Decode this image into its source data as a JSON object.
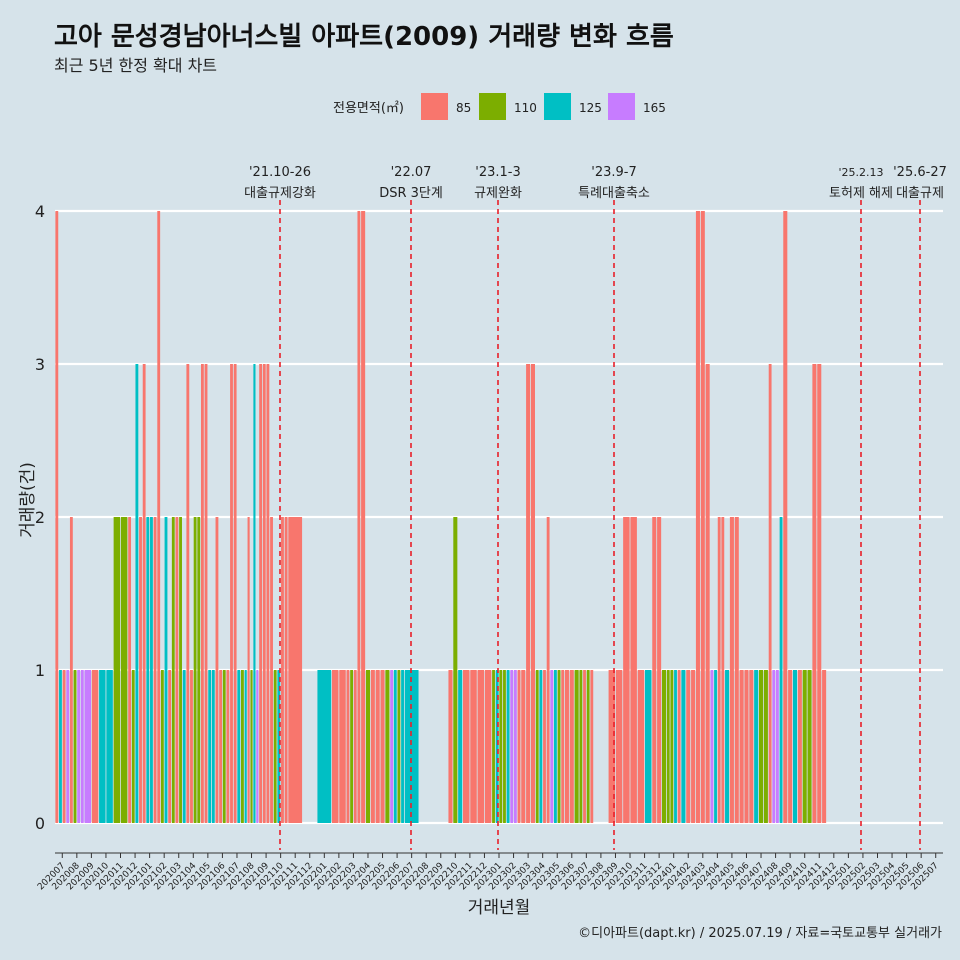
{
  "title": "고아 문성경남아너스빌 아파트(2009) 거래량 변화 흐름",
  "subtitle": "최근 5년 한정 확대 차트",
  "footer": "©디아파트(dapt.kr) / 2025.07.19 / 자료=국토교통부 실거래가",
  "colors": {
    "background": "#d6e3ea",
    "grid": "#ffffff",
    "event_line": "#e8202a"
  },
  "chart_data": {
    "type": "bar",
    "xlabel": "거래년월",
    "ylabel": "거래량(건)",
    "ylim": [
      0,
      4
    ],
    "yticks": [
      0,
      1,
      2,
      3,
      4
    ],
    "legend": {
      "title": "전용면적(㎡)",
      "position": "top",
      "items": [
        {
          "name": "85",
          "color": "#f8766d"
        },
        {
          "name": "110",
          "color": "#7cae00"
        },
        {
          "name": "125",
          "color": "#00bfc4"
        },
        {
          "name": "165",
          "color": "#c77cff"
        }
      ]
    },
    "categories": [
      "202007",
      "202008",
      "202009",
      "202010",
      "202011",
      "202012",
      "202101",
      "202102",
      "202103",
      "202104",
      "202105",
      "202106",
      "202107",
      "202108",
      "202109",
      "202110",
      "202111",
      "202112",
      "202201",
      "202202",
      "202203",
      "202204",
      "202205",
      "202206",
      "202207",
      "202208",
      "202209",
      "202210",
      "202211",
      "202212",
      "202301",
      "202302",
      "202303",
      "202304",
      "202305",
      "202306",
      "202307",
      "202308",
      "202309",
      "202310",
      "202311",
      "202312",
      "202401",
      "202402",
      "202403",
      "202404",
      "202405",
      "202406",
      "202407",
      "202408",
      "202409",
      "202410",
      "202411",
      "202412",
      "202501",
      "202502",
      "202503",
      "202504",
      "202505",
      "202506",
      "202507"
    ],
    "transactions": [
      {
        "month": "202007",
        "bars": [
          [
            "85",
            4
          ],
          [
            "125",
            1
          ],
          [
            "85",
            1
          ],
          [
            "165",
            1
          ]
        ]
      },
      {
        "month": "202008",
        "bars": [
          [
            "85",
            2
          ],
          [
            "110",
            1
          ],
          [
            "165",
            1
          ],
          [
            "165",
            1
          ]
        ]
      },
      {
        "month": "202009",
        "bars": [
          [
            "165",
            1
          ],
          [
            "85",
            1
          ]
        ]
      },
      {
        "month": "202010",
        "bars": [
          [
            "125",
            1
          ],
          [
            "125",
            1
          ]
        ]
      },
      {
        "month": "202011",
        "bars": [
          [
            "110",
            2
          ],
          [
            "110",
            2
          ]
        ]
      },
      {
        "month": "202012",
        "bars": [
          [
            "85",
            2
          ],
          [
            "110",
            1
          ],
          [
            "125",
            3
          ],
          [
            "85",
            2
          ]
        ]
      },
      {
        "month": "202101",
        "bars": [
          [
            "85",
            3
          ],
          [
            "125",
            2
          ],
          [
            "125",
            2
          ],
          [
            "85",
            2
          ]
        ]
      },
      {
        "month": "202102",
        "bars": [
          [
            "85",
            4
          ],
          [
            "110",
            1
          ],
          [
            "125",
            2
          ],
          [
            "85",
            1
          ]
        ]
      },
      {
        "month": "202103",
        "bars": [
          [
            "110",
            2
          ],
          [
            "85",
            2
          ],
          [
            "110",
            2
          ],
          [
            "125",
            1
          ]
        ]
      },
      {
        "month": "202104",
        "bars": [
          [
            "85",
            3
          ],
          [
            "85",
            1
          ],
          [
            "110",
            2
          ],
          [
            "110",
            2
          ]
        ]
      },
      {
        "month": "202105",
        "bars": [
          [
            "85",
            3
          ],
          [
            "85",
            3
          ],
          [
            "125",
            1
          ],
          [
            "125",
            1
          ]
        ]
      },
      {
        "month": "202106",
        "bars": [
          [
            "85",
            2
          ],
          [
            "85",
            1
          ],
          [
            "110",
            1
          ],
          [
            "85",
            1
          ]
        ]
      },
      {
        "month": "202107",
        "bars": [
          [
            "85",
            3
          ],
          [
            "85",
            3
          ],
          [
            "125",
            1
          ],
          [
            "110",
            1
          ]
        ]
      },
      {
        "month": "202108",
        "bars": [
          [
            "125",
            1
          ],
          [
            "85",
            2
          ],
          [
            "110",
            1
          ],
          [
            "125",
            3
          ],
          [
            "165",
            1
          ]
        ]
      },
      {
        "month": "202109",
        "bars": [
          [
            "85",
            3
          ],
          [
            "85",
            3
          ],
          [
            "85",
            3
          ],
          [
            "85",
            2
          ]
        ]
      },
      {
        "month": "202110",
        "bars": [
          [
            "110",
            1
          ],
          [
            "125",
            1
          ],
          [
            "85",
            2
          ],
          [
            "85",
            2
          ]
        ]
      },
      {
        "month": "202111",
        "bars": [
          [
            "85",
            2
          ]
        ]
      },
      {
        "month": "202201",
        "bars": [
          [
            "125",
            1
          ]
        ]
      },
      {
        "month": "202202",
        "bars": [
          [
            "85",
            1
          ],
          [
            "85",
            1
          ]
        ]
      },
      {
        "month": "202203",
        "bars": [
          [
            "85",
            1
          ],
          [
            "110",
            1
          ],
          [
            "85",
            1
          ],
          [
            "85",
            4
          ]
        ]
      },
      {
        "month": "202204",
        "bars": [
          [
            "85",
            4
          ],
          [
            "110",
            1
          ],
          [
            "85",
            1
          ]
        ]
      },
      {
        "month": "202205",
        "bars": [
          [
            "85",
            1
          ],
          [
            "85",
            1
          ],
          [
            "110",
            1
          ]
        ]
      },
      {
        "month": "202206",
        "bars": [
          [
            "165",
            1
          ],
          [
            "125",
            1
          ],
          [
            "110",
            1
          ],
          [
            "125",
            1
          ]
        ]
      },
      {
        "month": "202207",
        "bars": [
          [
            "125",
            1
          ]
        ]
      },
      {
        "month": "202210",
        "bars": [
          [
            "85",
            1
          ],
          [
            "110",
            2
          ],
          [
            "125",
            1
          ]
        ]
      },
      {
        "month": "202211",
        "bars": [
          [
            "85",
            1
          ],
          [
            "85",
            1
          ]
        ]
      },
      {
        "month": "202212",
        "bars": [
          [
            "85",
            1
          ],
          [
            "85",
            1
          ]
        ]
      },
      {
        "month": "202301",
        "bars": [
          [
            "110",
            1
          ],
          [
            "125",
            1
          ],
          [
            "110",
            1
          ],
          [
            "110",
            1
          ]
        ]
      },
      {
        "month": "202302",
        "bars": [
          [
            "125",
            1
          ],
          [
            "165",
            1
          ],
          [
            "165",
            1
          ],
          [
            "85",
            1
          ]
        ]
      },
      {
        "month": "202303",
        "bars": [
          [
            "85",
            1
          ],
          [
            "85",
            3
          ],
          [
            "85",
            3
          ]
        ]
      },
      {
        "month": "202304",
        "bars": [
          [
            "110",
            1
          ],
          [
            "125",
            1
          ],
          [
            "85",
            1
          ],
          [
            "85",
            2
          ]
        ]
      },
      {
        "month": "202305",
        "bars": [
          [
            "165",
            1
          ],
          [
            "125",
            1
          ],
          [
            "110",
            1
          ],
          [
            "85",
            1
          ]
        ]
      },
      {
        "month": "202306",
        "bars": [
          [
            "85",
            1
          ],
          [
            "85",
            1
          ],
          [
            "110",
            1
          ]
        ]
      },
      {
        "month": "202307",
        "bars": [
          [
            "110",
            1
          ],
          [
            "85",
            1
          ],
          [
            "110",
            1
          ],
          [
            "85",
            1
          ]
        ]
      },
      {
        "month": "202309",
        "bars": [
          [
            "85",
            1
          ],
          [
            "85",
            1
          ]
        ]
      },
      {
        "month": "202310",
        "bars": [
          [
            "85",
            2
          ],
          [
            "85",
            2
          ]
        ]
      },
      {
        "month": "202311",
        "bars": [
          [
            "85",
            1
          ],
          [
            "125",
            1
          ]
        ]
      },
      {
        "month": "202312",
        "bars": [
          [
            "85",
            2
          ],
          [
            "85",
            2
          ],
          [
            "110",
            1
          ]
        ]
      },
      {
        "month": "202401",
        "bars": [
          [
            "110",
            1
          ],
          [
            "110",
            1
          ],
          [
            "125",
            1
          ],
          [
            "85",
            1
          ]
        ]
      },
      {
        "month": "202402",
        "bars": [
          [
            "125",
            1
          ],
          [
            "85",
            1
          ],
          [
            "85",
            1
          ]
        ]
      },
      {
        "month": "202403",
        "bars": [
          [
            "85",
            4
          ],
          [
            "85",
            4
          ],
          [
            "85",
            3
          ]
        ]
      },
      {
        "month": "202404",
        "bars": [
          [
            "165",
            1
          ],
          [
            "125",
            1
          ],
          [
            "85",
            2
          ],
          [
            "85",
            2
          ]
        ]
      },
      {
        "month": "202405",
        "bars": [
          [
            "125",
            1
          ],
          [
            "85",
            2
          ],
          [
            "85",
            2
          ]
        ]
      },
      {
        "month": "202406",
        "bars": [
          [
            "85",
            1
          ],
          [
            "85",
            1
          ],
          [
            "85",
            1
          ]
        ]
      },
      {
        "month": "202407",
        "bars": [
          [
            "125",
            1
          ],
          [
            "110",
            1
          ],
          [
            "110",
            1
          ]
        ]
      },
      {
        "month": "202408",
        "bars": [
          [
            "85",
            3
          ],
          [
            "165",
            1
          ],
          [
            "165",
            1
          ],
          [
            "125",
            2
          ]
        ]
      },
      {
        "month": "202409",
        "bars": [
          [
            "85",
            4
          ],
          [
            "85",
            1
          ],
          [
            "125",
            1
          ]
        ]
      },
      {
        "month": "202410",
        "bars": [
          [
            "85",
            1
          ],
          [
            "110",
            1
          ],
          [
            "110",
            1
          ]
        ]
      },
      {
        "month": "202411",
        "bars": [
          [
            "85",
            3
          ],
          [
            "85",
            3
          ],
          [
            "85",
            1
          ]
        ]
      }
    ],
    "events": [
      {
        "date": "'21.10-26",
        "label": "대출규제강화"
      },
      {
        "date": "'22.07",
        "label": "DSR 3단계"
      },
      {
        "date": "'23.1-3",
        "label": "규제완화"
      },
      {
        "date": "'23.9-7",
        "label": "특례대출축소"
      },
      {
        "date": "'25.2.13",
        "label": "토허제 해제"
      },
      {
        "date": "'25.6-27",
        "label": "대출규제"
      }
    ]
  }
}
